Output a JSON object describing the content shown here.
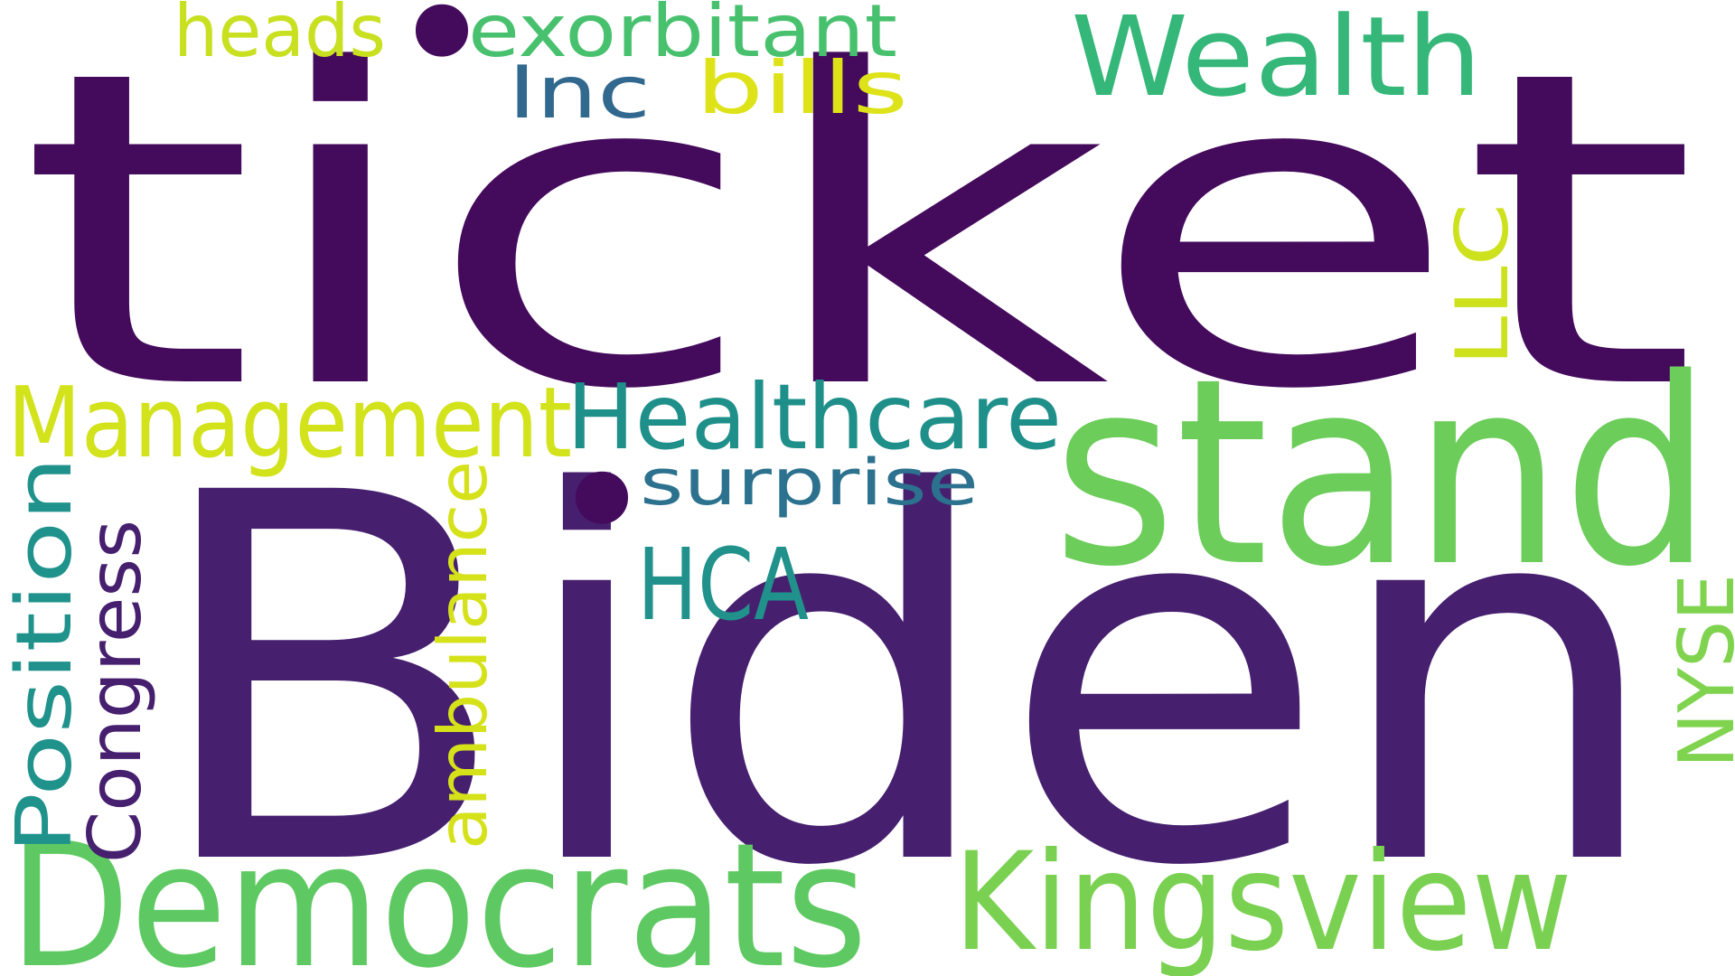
{
  "words": [
    {
      "id": "ticket",
      "text": "ticket",
      "color": "#440a5c"
    },
    {
      "id": "biden",
      "text": "Biden",
      "color": "#46206f"
    },
    {
      "id": "stand",
      "text": "stand",
      "color": "#6ccd5a"
    },
    {
      "id": "democrats",
      "text": "Democrats",
      "color": "#5ec962"
    },
    {
      "id": "kingsview",
      "text": "Kingsview",
      "color": "#7ad151"
    },
    {
      "id": "wealth",
      "text": "Wealth",
      "color": "#35b779"
    },
    {
      "id": "management",
      "text": "Management",
      "color": "#d2e21b"
    },
    {
      "id": "healthcare",
      "text": "Healthcare",
      "color": "#1f8f8a"
    },
    {
      "id": "hca",
      "text": "HCA",
      "color": "#21918c"
    },
    {
      "id": "surprise",
      "text": "surprise",
      "color": "#2c718e"
    },
    {
      "id": "exorbitant",
      "text": "exorbitant",
      "color": "#48c16e"
    },
    {
      "id": "heads",
      "text": "heads",
      "color": "#c8e020"
    },
    {
      "id": "inc",
      "text": "Inc",
      "color": "#31688e"
    },
    {
      "id": "bills",
      "text": "bills",
      "color": "#dde318"
    },
    {
      "id": "llc",
      "text": "LLC",
      "color": "#cde11d"
    },
    {
      "id": "position",
      "text": "Position",
      "color": "#20928c"
    },
    {
      "id": "congress",
      "text": "Congress",
      "color": "#46206f"
    },
    {
      "id": "ambulance",
      "text": "ambulance",
      "color": "#d5e21a"
    },
    {
      "id": "nyse",
      "text": "NYSE",
      "color": "#7fd34e"
    },
    {
      "id": "dot-top",
      "text": "•",
      "color": "#440a5c"
    },
    {
      "id": "dot-mid",
      "text": "•",
      "color": "#440a5c"
    }
  ]
}
